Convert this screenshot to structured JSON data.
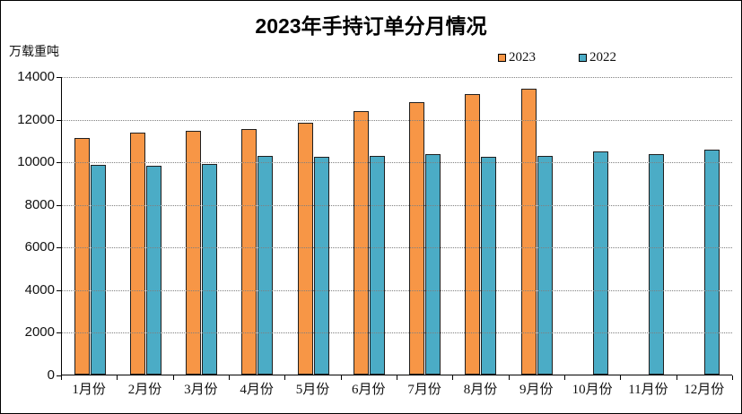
{
  "chart_data": {
    "type": "bar",
    "title": "2023年手持订单分月情况",
    "ylabel": "万载重吨",
    "xlabel": "",
    "categories": [
      "1月份",
      "2月份",
      "3月份",
      "4月份",
      "5月份",
      "6月份",
      "7月份",
      "8月份",
      "9月份",
      "10月份",
      "11月份",
      "12月份"
    ],
    "series": [
      {
        "name": "2023",
        "color": "#F79646",
        "border_color": "#1F1F1F",
        "values": [
          11109,
          11368,
          11452,
          11506,
          11799,
          12377,
          12790,
          13155,
          13393,
          null,
          null,
          null
        ]
      },
      {
        "name": "2022",
        "color": "#4BACC6",
        "border_color": "#1F1F1F",
        "values": [
          9850,
          9800,
          9900,
          10250,
          10200,
          10250,
          10350,
          10220,
          10270,
          10450,
          10350,
          10550
        ]
      }
    ],
    "ylim": [
      0,
      14000
    ],
    "y_tick_step": 2000,
    "y_ticks": [
      "0",
      "2000",
      "4000",
      "6000",
      "8000",
      "10000",
      "12000",
      "14000"
    ],
    "grid": "horizontal-dotted",
    "gridline_color": "#808080",
    "axis_color": "#000000",
    "background": "#FFFFFF",
    "legend_position": "top-right"
  }
}
